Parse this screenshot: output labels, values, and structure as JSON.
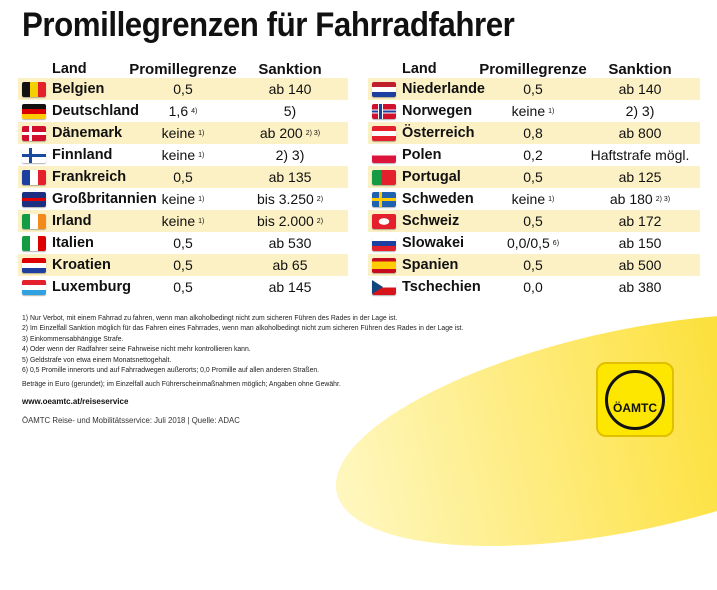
{
  "title": "Promillegrenzen für Fahrradfahrer",
  "headers": {
    "land": "Land",
    "prom": "Promillegrenze",
    "sank": "Sanktion"
  },
  "left": [
    {
      "flag": "be",
      "land": "Belgien",
      "prom": "0,5",
      "prom_sup": "",
      "sank": "ab 140",
      "sank_sup": ""
    },
    {
      "flag": "de",
      "land": "Deutschland",
      "prom": "1,6",
      "prom_sup": "4)",
      "sank": "5)",
      "sank_sup": ""
    },
    {
      "flag": "dk",
      "land": "Dänemark",
      "prom": "keine",
      "prom_sup": "1)",
      "sank": "ab 200",
      "sank_sup": "2) 3)"
    },
    {
      "flag": "fi",
      "land": "Finnland",
      "prom": "keine",
      "prom_sup": "1)",
      "sank": "2) 3)",
      "sank_sup": ""
    },
    {
      "flag": "fr",
      "land": "Frankreich",
      "prom": "0,5",
      "prom_sup": "",
      "sank": "ab 135",
      "sank_sup": ""
    },
    {
      "flag": "gb",
      "land": "Großbritannien",
      "prom": "keine",
      "prom_sup": "1)",
      "sank": "bis 3.250",
      "sank_sup": "2)"
    },
    {
      "flag": "ie",
      "land": "Irland",
      "prom": "keine",
      "prom_sup": "1)",
      "sank": "bis 2.000",
      "sank_sup": "2)"
    },
    {
      "flag": "it",
      "land": "Italien",
      "prom": "0,5",
      "prom_sup": "",
      "sank": "ab 530",
      "sank_sup": ""
    },
    {
      "flag": "hr",
      "land": "Kroatien",
      "prom": "0,5",
      "prom_sup": "",
      "sank": "ab 65",
      "sank_sup": ""
    },
    {
      "flag": "lu",
      "land": "Luxemburg",
      "prom": "0,5",
      "prom_sup": "",
      "sank": "ab 145",
      "sank_sup": ""
    }
  ],
  "right": [
    {
      "flag": "nl",
      "land": "Niederlande",
      "prom": "0,5",
      "prom_sup": "",
      "sank": "ab 140",
      "sank_sup": ""
    },
    {
      "flag": "no",
      "land": "Norwegen",
      "prom": "keine",
      "prom_sup": "1)",
      "sank": "2) 3)",
      "sank_sup": ""
    },
    {
      "flag": "at",
      "land": "Österreich",
      "prom": "0,8",
      "prom_sup": "",
      "sank": "ab 800",
      "sank_sup": ""
    },
    {
      "flag": "pl",
      "land": "Polen",
      "prom": "0,2",
      "prom_sup": "",
      "sank": "Haftstrafe mögl.",
      "sank_sup": ""
    },
    {
      "flag": "pt",
      "land": "Portugal",
      "prom": "0,5",
      "prom_sup": "",
      "sank": "ab 125",
      "sank_sup": ""
    },
    {
      "flag": "se",
      "land": "Schweden",
      "prom": "keine",
      "prom_sup": "1)",
      "sank": "ab 180",
      "sank_sup": "2) 3)"
    },
    {
      "flag": "ch",
      "land": "Schweiz",
      "prom": "0,5",
      "prom_sup": "",
      "sank": "ab 172",
      "sank_sup": ""
    },
    {
      "flag": "sk",
      "land": "Slowakei",
      "prom": "0,0/0,5",
      "prom_sup": "6)",
      "sank": "ab 150",
      "sank_sup": ""
    },
    {
      "flag": "es",
      "land": "Spanien",
      "prom": "0,5",
      "prom_sup": "",
      "sank": "ab 500",
      "sank_sup": ""
    },
    {
      "flag": "cz",
      "land": "Tschechien",
      "prom": "0,0",
      "prom_sup": "",
      "sank": "ab 380",
      "sank_sup": ""
    }
  ],
  "notes": [
    "1)  Nur Verbot, mit einem Fahrrad zu fahren, wenn man alkoholbedingt nicht zum sicheren Führen des Rades in der Lage ist.",
    "2)  Im Einzelfall Sanktion möglich für das Fahren eines Fahrrades, wenn man alkoholbedingt nicht zum sicheren Führen des Rades in der Lage ist.",
    "3)  Einkommensabhängige Strafe.",
    "4)  Oder wenn der Radfahrer seine Fahrweise nicht mehr kontrollieren kann.",
    "5)  Geldstrafe von etwa einem Monatsnettogehalt.",
    "6)  0,5 Promille innerorts und auf Fahrradwegen außerorts; 0,0 Promille auf allen anderen Straßen."
  ],
  "disclaimer": "Beträge in Euro (gerundet); im Einzelfall auch Führerscheinmaßnahmen möglich; Angaben ohne Gewähr.",
  "url": "www.oeamtc.at/reiseservice",
  "source": "ÖAMTC Reise- und Mobilitätsservice: Juli 2018 | Quelle: ADAC",
  "logo_text": "ÖAMTC",
  "colors": {
    "stripe": "#fcf1c4",
    "brand_yellow": "#fde600"
  }
}
